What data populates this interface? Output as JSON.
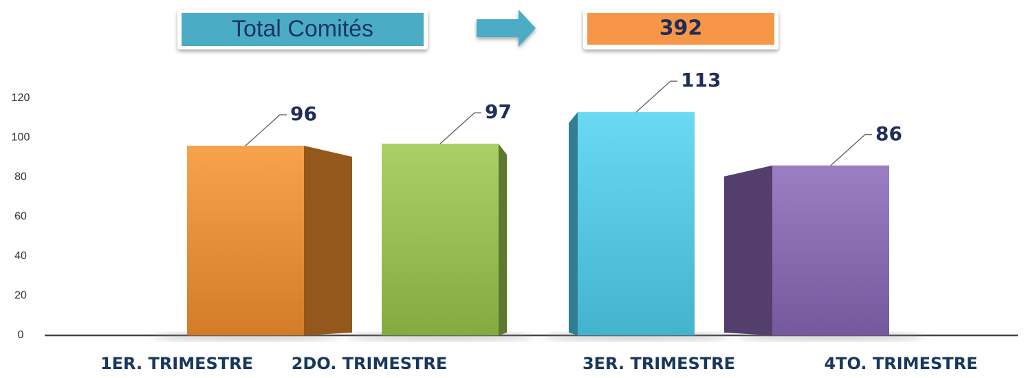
{
  "chart_data": {
    "type": "bar3d",
    "total_label": "Total Comités",
    "total": 392,
    "categories": [
      "1ER. TRIMESTRE",
      "2DO. TRIMESTRE",
      "3ER. TRIMESTRE",
      "4TO. TRIMESTRE"
    ],
    "values": [
      96,
      97,
      113,
      86
    ],
    "colors": [
      "#f7922f",
      "#9bc94a",
      "#4fd3f2",
      "#8a67b8"
    ],
    "ylim": [
      0,
      120
    ],
    "yticks": [
      0,
      20,
      40,
      60,
      80,
      100,
      120
    ],
    "grid": false
  }
}
